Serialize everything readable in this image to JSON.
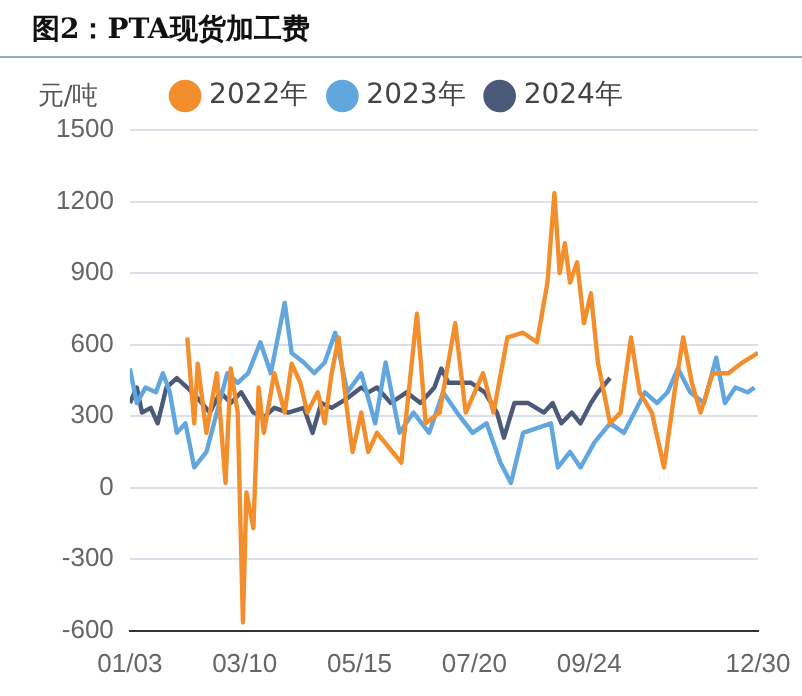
{
  "chart_data": {
    "type": "line",
    "title": "图2：PTA现货加工费",
    "ylabel": "元/吨",
    "xlim": [
      "--01-03",
      "--12-30"
    ],
    "xticks": [
      {
        "value": "--01-03",
        "label": "01/03"
      },
      {
        "value": "--03-10",
        "label": "03/10"
      },
      {
        "value": "--05-15",
        "label": "05/15"
      },
      {
        "value": "--07-20",
        "label": "07/20"
      },
      {
        "value": "--09-24",
        "label": "09/24"
      },
      {
        "value": "--12-30",
        "label": "12/30"
      }
    ],
    "ylim": [
      -600,
      1500
    ],
    "yticks": [
      -600,
      -300,
      0,
      300,
      600,
      900,
      1200,
      1500
    ],
    "grid": "y",
    "legend": "top",
    "series": [
      {
        "name": "2022年",
        "color": "#f28e2b",
        "x": [
          "--02-05",
          "--02-09",
          "--02-11",
          "--02-16",
          "--02-22",
          "--02-27",
          "--03-02",
          "--03-06",
          "--03-09",
          "--03-11",
          "--03-15",
          "--03-18",
          "--03-21",
          "--03-27",
          "--04-02",
          "--04-06",
          "--04-11",
          "--04-15",
          "--04-21",
          "--04-25",
          "--04-29",
          "--05-03",
          "--05-08",
          "--05-11",
          "--05-16",
          "--05-20",
          "--05-25",
          "--06-08",
          "--06-17",
          "--06-22",
          "--06-30",
          "--07-09",
          "--07-15",
          "--07-25",
          "--07-31",
          "--08-08",
          "--08-17",
          "--08-25",
          "--08-31",
          "--09-04",
          "--09-07",
          "--09-10",
          "--09-13",
          "--09-17",
          "--09-21",
          "--09-25",
          "--09-29",
          "--10-06",
          "--10-12",
          "--10-18",
          "--10-23",
          "--10-30",
          "--11-06",
          "--11-12",
          "--11-17",
          "--11-22",
          "--11-27",
          "--12-04",
          "--12-13",
          "--12-21",
          "--12-30"
        ],
        "values": [
          630,
          270,
          520,
          230,
          480,
          20,
          500,
          315,
          -565,
          -20,
          -170,
          420,
          230,
          480,
          315,
          520,
          440,
          315,
          400,
          270,
          480,
          630,
          315,
          150,
          315,
          150,
          230,
          105,
          730,
          270,
          315,
          690,
          315,
          480,
          315,
          630,
          650,
          610,
          860,
          1235,
          900,
          1025,
          860,
          945,
          690,
          815,
          525,
          270,
          315,
          630,
          400,
          315,
          85,
          400,
          630,
          440,
          315,
          480,
          480,
          525,
          565
        ]
      },
      {
        "name": "2023年",
        "color": "#62a6e0",
        "x": [
          "--01-03",
          "--01-07",
          "--01-12",
          "--01-18",
          "--01-22",
          "--01-26",
          "--01-30",
          "--02-04",
          "--02-09",
          "--02-16",
          "--02-22",
          "--02-28",
          "--03-06",
          "--03-12",
          "--03-19",
          "--03-25",
          "--04-02",
          "--04-06",
          "--04-13",
          "--04-19",
          "--04-25",
          "--05-01",
          "--05-08",
          "--05-16",
          "--05-24",
          "--05-30",
          "--06-07",
          "--06-15",
          "--06-24",
          "--07-02",
          "--07-10",
          "--07-19",
          "--07-27",
          "--08-04",
          "--08-10",
          "--08-17",
          "--08-25",
          "--09-02",
          "--09-06",
          "--09-13",
          "--09-19",
          "--09-27",
          "--10-06",
          "--10-14",
          "--10-20",
          "--10-26",
          "--11-02",
          "--11-08",
          "--11-14",
          "--11-21",
          "--11-29",
          "--12-06",
          "--12-11",
          "--12-17",
          "--12-24",
          "--12-28"
        ],
        "values": [
          500,
          355,
          420,
          400,
          480,
          400,
          230,
          270,
          85,
          150,
          315,
          480,
          440,
          480,
          610,
          480,
          775,
          565,
          525,
          480,
          525,
          650,
          400,
          480,
          270,
          525,
          230,
          315,
          230,
          400,
          315,
          230,
          270,
          105,
          20,
          230,
          250,
          270,
          85,
          150,
          85,
          190,
          270,
          230,
          315,
          400,
          355,
          400,
          500,
          400,
          355,
          545,
          355,
          420,
          400,
          420
        ]
      },
      {
        "name": "2024年",
        "color": "#4a5a78",
        "x": [
          "--01-03",
          "--01-07",
          "--01-10",
          "--01-15",
          "--01-19",
          "--01-24",
          "--01-30",
          "--02-05",
          "--02-11",
          "--02-18",
          "--02-24",
          "--03-02",
          "--03-08",
          "--03-15",
          "--03-21",
          "--03-27",
          "--04-04",
          "--04-13",
          "--04-18",
          "--04-23",
          "--04-29",
          "--05-08",
          "--05-16",
          "--05-20",
          "--05-25",
          "--06-02",
          "--06-11",
          "--06-19",
          "--06-27",
          "--07-01",
          "--07-05",
          "--07-18",
          "--07-26",
          "--08-02",
          "--08-06",
          "--08-12",
          "--08-20",
          "--08-29",
          "--09-03",
          "--09-08",
          "--09-14",
          "--09-19",
          "--09-25",
          "--09-29",
          "--10-06"
        ],
        "values": [
          355,
          420,
          315,
          335,
          270,
          420,
          460,
          420,
          375,
          315,
          400,
          355,
          400,
          315,
          295,
          335,
          315,
          335,
          230,
          355,
          335,
          375,
          420,
          400,
          420,
          355,
          400,
          355,
          420,
          500,
          440,
          440,
          400,
          315,
          210,
          355,
          355,
          315,
          355,
          270,
          315,
          270,
          355,
          400,
          460
        ]
      }
    ]
  }
}
